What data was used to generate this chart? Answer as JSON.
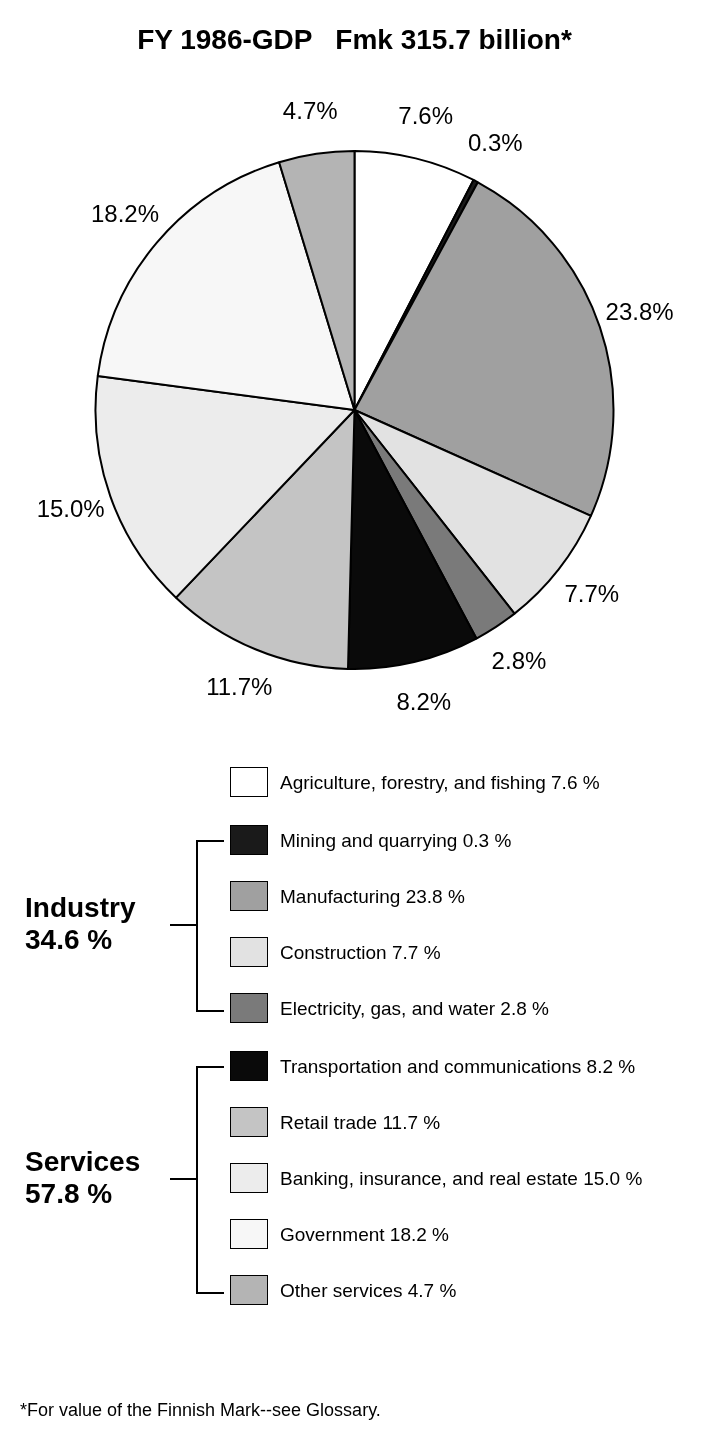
{
  "chart_data": {
    "type": "pie",
    "title": "FY 1986-GDP   Fmk 315.7 billion*",
    "categories": [
      "Agriculture, forestry, and fishing 7.6 %",
      "Mining and quarrying 0.3 %",
      "Manufacturing 23.8 %",
      "Construction 7.7 %",
      "Electricity, gas, and water 2.8 %",
      "Transportation and communications 8.2 %",
      "Retail trade 11.7 %",
      "Banking, insurance, and real estate 15.0 %",
      "Government 18.2 %",
      "Other services 4.7 %"
    ],
    "values": [
      7.6,
      0.3,
      23.8,
      7.7,
      2.8,
      8.2,
      11.7,
      15.0,
      18.2,
      4.7
    ],
    "value_labels": [
      "7.6%",
      "0.3%",
      "23.8%",
      "7.7%",
      "2.8%",
      "8.2%",
      "11.7%",
      "15.0%",
      "18.2%",
      "4.7%"
    ],
    "colors": [
      "#ffffff",
      "#1a1a1a",
      "#a0a0a0",
      "#e2e2e2",
      "#7a7a7a",
      "#0a0a0a",
      "#c4c4c4",
      "#ececec",
      "#f7f7f7",
      "#b4b4b4"
    ],
    "legend": "right",
    "annotations": [
      "Industry\n34.6 %",
      "Services\n57.8 %",
      "*For value of the Finnish Mark--see Glossary."
    ]
  }
}
